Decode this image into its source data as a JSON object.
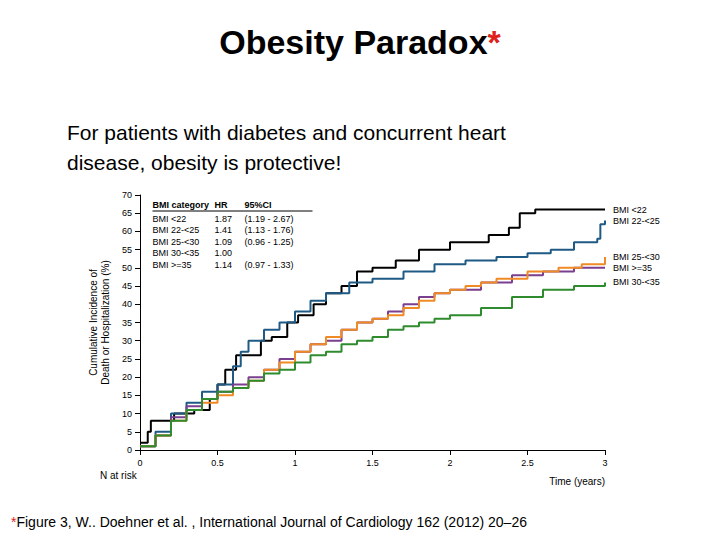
{
  "chart_data": {
    "type": "line",
    "title": "Obesity Paradox*",
    "subtitle": "For patients with diabetes and concurrent heart\ndisease, obesity is protective!",
    "footnote": "*Figure 3, W.. Doehner et al. , International Journal of Cardiology 162 (2012) 20–26",
    "x_label": "Time (years)",
    "y_label": "Cumulative Incidence of\nDeath or Hospitalization (%)",
    "annotations": [
      "N at risk"
    ],
    "legend_table": {
      "header": [
        "BMI category",
        "HR",
        "95%CI"
      ],
      "rows": [
        [
          "BMI <22",
          "1.87",
          "(1.19 - 2.67)"
        ],
        [
          "BMI 22-<25",
          "1.41",
          "(1.13 - 1.76)"
        ],
        [
          "BMI 25-<30",
          "1.09",
          "(0.96 - 1.25)"
        ],
        [
          "BMI 30-<35",
          "1.00",
          ""
        ],
        [
          "BMI >=35",
          "1.14",
          "(0.97 - 1.33)"
        ]
      ]
    },
    "line_style": "step",
    "grid": false,
    "xlim": [
      0,
      3
    ],
    "xticks": [
      0,
      0.5,
      1,
      1.5,
      2,
      2.5,
      3
    ],
    "ylim": [
      0,
      70
    ],
    "yticks": [
      0,
      5,
      10,
      15,
      20,
      25,
      30,
      35,
      40,
      45,
      50,
      55,
      60,
      65,
      70
    ],
    "series": [
      {
        "name": "BMI <22",
        "color": "#000000",
        "x": [
          0,
          0.05,
          0.07,
          0.2,
          0.22,
          0.35,
          0.45,
          0.5,
          0.55,
          0.62,
          0.75,
          0.78,
          0.85,
          0.95,
          1.02,
          1.12,
          1.2,
          1.3,
          1.4,
          1.5,
          1.65,
          1.8,
          2.0,
          2.25,
          2.38,
          2.45,
          2.55,
          3.0
        ],
        "values": [
          2,
          5,
          8,
          8,
          10,
          11,
          14,
          18,
          22,
          26,
          26,
          30,
          31,
          35,
          37,
          40,
          43,
          45,
          49,
          50,
          52,
          55,
          57,
          59,
          61,
          65,
          66,
          66
        ]
      },
      {
        "name": "BMI 22-<25",
        "color": "#1f5a85",
        "x": [
          0,
          0.1,
          0.2,
          0.3,
          0.4,
          0.5,
          0.6,
          0.65,
          0.7,
          0.8,
          0.9,
          1.0,
          1.1,
          1.2,
          1.35,
          1.5,
          1.7,
          1.9,
          2.1,
          2.3,
          2.5,
          2.65,
          2.8,
          2.95,
          2.97,
          3.0
        ],
        "values": [
          1,
          5,
          10,
          13,
          16,
          18,
          23,
          27,
          30,
          33,
          35,
          38,
          41,
          43,
          46,
          47,
          49,
          51,
          52,
          53,
          54,
          55,
          57,
          58,
          62,
          63
        ]
      },
      {
        "name": "BMI >=35",
        "color": "#7b3f8f",
        "x": [
          0,
          0.1,
          0.2,
          0.3,
          0.4,
          0.5,
          0.6,
          0.7,
          0.8,
          0.9,
          1.0,
          1.1,
          1.2,
          1.3,
          1.4,
          1.5,
          1.6,
          1.7,
          1.8,
          1.9,
          2.0,
          2.2,
          2.4,
          2.6,
          2.8,
          3.0
        ],
        "values": [
          1,
          4,
          9,
          12,
          14,
          16,
          18,
          20,
          22,
          25,
          27,
          29,
          30,
          33,
          35,
          36,
          38,
          40,
          42,
          43,
          44,
          46,
          48,
          49,
          50,
          50
        ]
      },
      {
        "name": "BMI 25-<30",
        "color": "#f08a24",
        "x": [
          0,
          0.1,
          0.2,
          0.3,
          0.4,
          0.5,
          0.6,
          0.7,
          0.8,
          0.9,
          1.0,
          1.1,
          1.2,
          1.3,
          1.4,
          1.5,
          1.6,
          1.7,
          1.8,
          1.9,
          2.0,
          2.1,
          2.2,
          2.3,
          2.5,
          2.7,
          2.85,
          3.0
        ],
        "values": [
          1,
          4,
          8,
          11,
          13,
          15,
          17,
          19,
          22,
          24,
          27,
          29,
          31,
          33,
          35,
          36,
          37,
          39,
          41,
          43,
          44,
          45,
          46,
          47,
          49,
          50,
          51,
          53
        ]
      },
      {
        "name": "BMI 30-<35",
        "color": "#2e8b2e",
        "x": [
          0,
          0.1,
          0.2,
          0.3,
          0.4,
          0.5,
          0.6,
          0.7,
          0.8,
          0.9,
          1.0,
          1.1,
          1.2,
          1.3,
          1.4,
          1.5,
          1.6,
          1.7,
          1.8,
          1.9,
          2.0,
          2.2,
          2.4,
          2.6,
          2.8,
          3.0
        ],
        "values": [
          1,
          4,
          8,
          11,
          14,
          16,
          17,
          19,
          21,
          22,
          24,
          26,
          27,
          29,
          30,
          31,
          33,
          34,
          35,
          36,
          37,
          39,
          42,
          44,
          45,
          46
        ]
      }
    ]
  }
}
